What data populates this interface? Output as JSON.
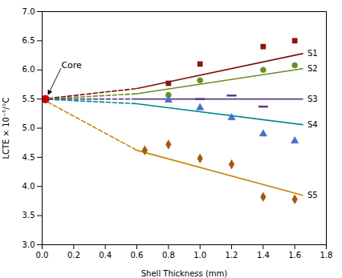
{
  "chart_data": {
    "type": "line",
    "xlabel": "Shell Thickness (mm)",
    "ylabel": "LCTE × 10⁻⁵/°C",
    "xlim": [
      0,
      1.8
    ],
    "ylim": [
      3.0,
      7.0
    ],
    "xticks": [
      {
        "value": 0,
        "label": "0.0"
      },
      0.2,
      0.4,
      0.6,
      0.8,
      {
        "value": 1.0,
        "label": "1.0"
      },
      1.2,
      1.4,
      1.6,
      1.8
    ],
    "yticks": [
      {
        "value": 3.0,
        "label": "3.0"
      },
      3.5,
      {
        "value": 4.0,
        "label": "4.0"
      },
      4.5,
      {
        "value": 5.0,
        "label": "5.0"
      },
      5.5,
      {
        "value": 6.0,
        "label": "6.0"
      },
      6.5,
      {
        "value": 7.0,
        "label": "7.0"
      }
    ],
    "grid": false,
    "series": [
      {
        "name": "S1",
        "color": "#7B1010",
        "dashed": {
          "line_style": "dashed",
          "x": [
            0.0,
            0.6
          ],
          "values": [
            5.5,
            5.68
          ]
        },
        "solid": {
          "line_style": "solid",
          "x": [
            0.6,
            1.65
          ],
          "values": [
            5.68,
            6.28
          ]
        },
        "points": {
          "color": "#8B1515",
          "marker": "square",
          "x": [
            0.8,
            1.0,
            1.4,
            1.6
          ],
          "values": [
            5.77,
            6.1,
            6.4,
            6.5
          ]
        }
      },
      {
        "name": "S2",
        "color": "#6B8E23",
        "dashed": {
          "line_style": "dashed",
          "x": [
            0.0,
            0.6
          ],
          "values": [
            5.5,
            5.59
          ]
        },
        "solid": {
          "line_style": "solid",
          "x": [
            0.6,
            1.65
          ],
          "values": [
            5.59,
            6.02
          ]
        },
        "points": {
          "color": "#6B8E23",
          "marker": "circle",
          "x": [
            0.8,
            1.0,
            1.4,
            1.6
          ],
          "values": [
            5.57,
            5.82,
            6.0,
            6.08
          ]
        }
      },
      {
        "name": "S3",
        "color": "#5B3A8E",
        "dashed": {
          "line_style": "dashed",
          "x": [
            0.0,
            0.6
          ],
          "values": [
            5.5,
            5.5
          ]
        },
        "solid": {
          "line_style": "solid",
          "x": [
            0.6,
            1.65
          ],
          "values": [
            5.5,
            5.5
          ]
        },
        "points": {
          "color": "#5B3A8E",
          "marker": "hline",
          "x": [
            1.0,
            1.2,
            1.4
          ],
          "values": [
            5.5,
            5.56,
            5.37
          ]
        }
      },
      {
        "name": "S4",
        "color": "#008B8B",
        "dashed": {
          "line_style": "dashed",
          "x": [
            0.0,
            0.6
          ],
          "values": [
            5.5,
            5.42
          ]
        },
        "solid": {
          "line_style": "solid",
          "x": [
            0.6,
            1.65
          ],
          "values": [
            5.42,
            5.06
          ]
        },
        "points": {
          "color": "#4472C4",
          "marker": "triangle",
          "x": [
            0.8,
            1.0,
            1.2,
            1.4,
            1.6
          ],
          "values": [
            5.48,
            5.35,
            5.18,
            4.9,
            4.78
          ]
        }
      },
      {
        "name": "S5",
        "color": "#C8860B",
        "dashed": {
          "line_style": "dashed",
          "x": [
            0.0,
            0.6
          ],
          "values": [
            5.5,
            4.62
          ]
        },
        "solid": {
          "line_style": "solid",
          "x": [
            0.6,
            1.65
          ],
          "values": [
            4.62,
            3.85
          ]
        },
        "points": {
          "color": "#A0580A",
          "marker": "diamond",
          "x": [
            0.65,
            0.8,
            1.0,
            1.2,
            1.4,
            1.6
          ],
          "values": [
            4.62,
            4.72,
            4.48,
            4.38,
            3.82,
            3.78
          ]
        }
      }
    ],
    "core_point": {
      "x": 0.02,
      "y": 5.5,
      "color": "#cc0000",
      "marker": "circle"
    },
    "annotations": [
      {
        "text": "Core",
        "x": 0.02,
        "y": 5.5
      }
    ]
  }
}
